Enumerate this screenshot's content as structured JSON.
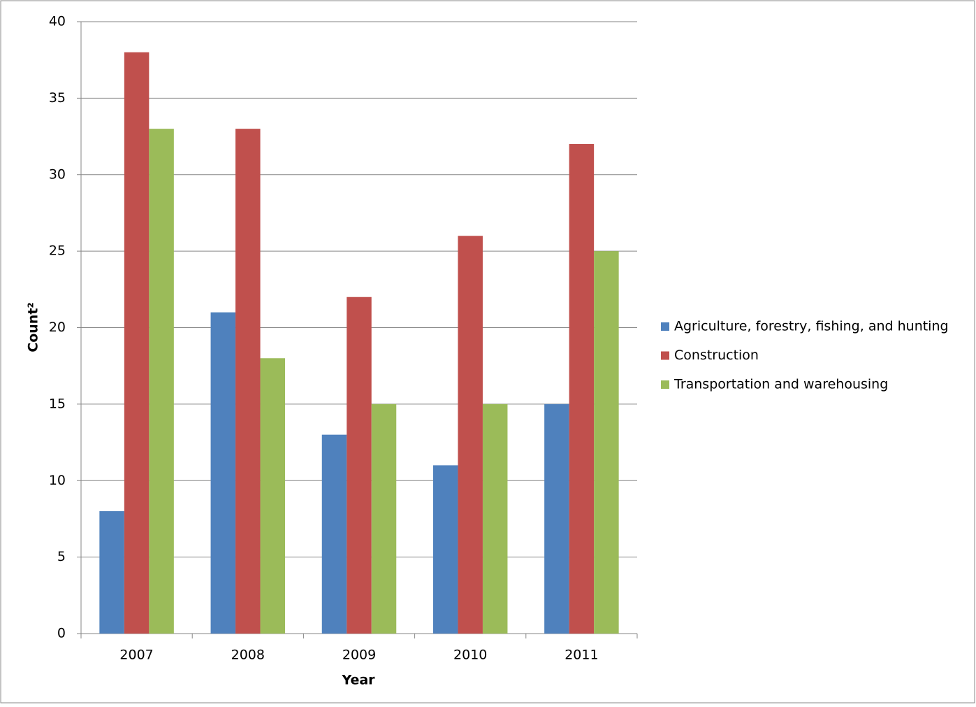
{
  "chart_data": {
    "type": "bar",
    "x_label": "Year",
    "y_label": "Count²",
    "categories": [
      "2007",
      "2008",
      "2009",
      "2010",
      "2011"
    ],
    "series": [
      {
        "name": "Agriculture, forestry, fishing, and hunting",
        "color": "#4f81bd",
        "values": [
          8,
          21,
          13,
          11,
          15
        ]
      },
      {
        "name": "Construction",
        "color": "#c0504d",
        "values": [
          38,
          33,
          22,
          26,
          32
        ]
      },
      {
        "name": "Transportation and warehousing",
        "color": "#9bbb59",
        "values": [
          33,
          18,
          15,
          15,
          25
        ]
      }
    ],
    "ylim": [
      0,
      40
    ],
    "yticks": [
      0,
      5,
      10,
      15,
      20,
      25,
      30,
      35,
      40
    ],
    "grid": true,
    "legend": "right"
  }
}
